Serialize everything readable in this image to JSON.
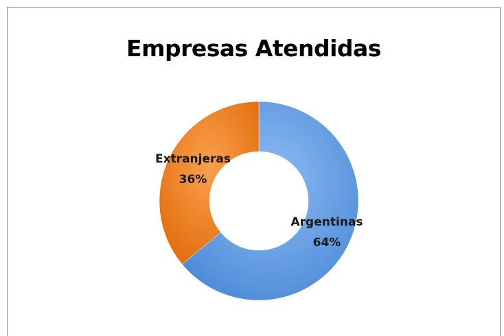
{
  "chart_data": {
    "type": "pie",
    "title": "Empresas Atendidas",
    "categories": [
      "Argentinas",
      "Extranjeras"
    ],
    "values": [
      64,
      36
    ],
    "unit": "%",
    "labels": [
      "64%",
      "36%"
    ],
    "colors": [
      "#5b9be6",
      "#f07a14"
    ],
    "style": "doughnut",
    "legend": "none"
  }
}
